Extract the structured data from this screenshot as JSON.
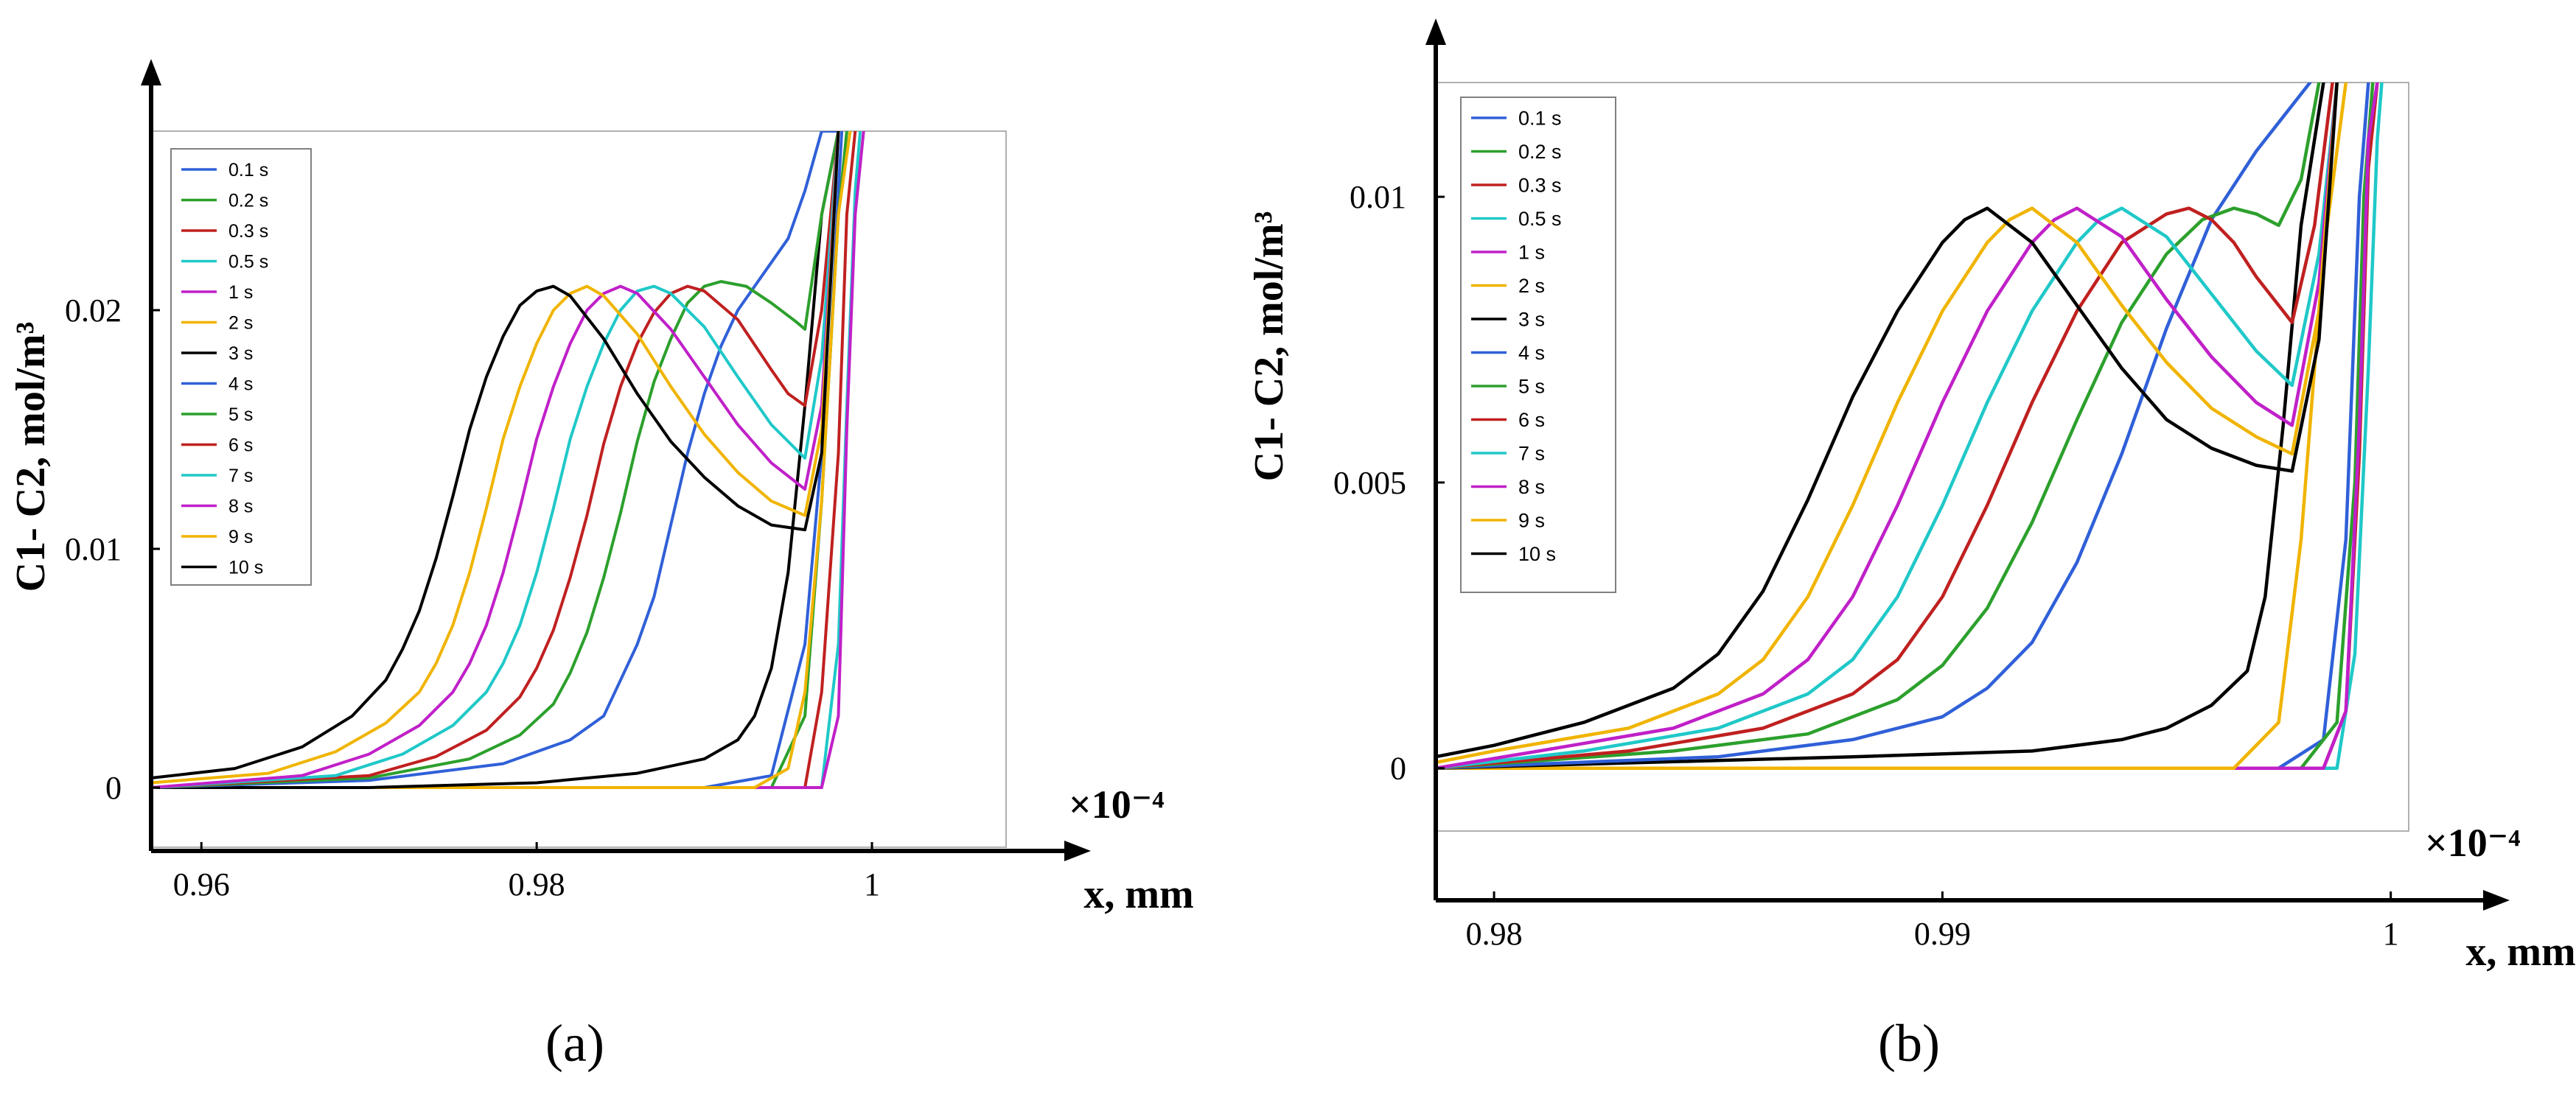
{
  "figure": {
    "panel_labels": [
      "(a)",
      "(b)"
    ]
  },
  "legend_colors": {
    "0.1 s": "#3060d8",
    "0.2 s": "#2ca02c",
    "0.3 s": "#c02020",
    "0.5 s": "#20c8c8",
    "1 s": "#c020c8",
    "2 s": "#f0b400",
    "3 s": "#000000",
    "4 s": "#3060d8",
    "5 s": "#2ca02c",
    "6 s": "#c02020",
    "7 s": "#20c8c8",
    "8 s": "#c020c8",
    "9 s": "#f0b400",
    "10 s": "#000000"
  },
  "chart_data": [
    {
      "panel": "(a)",
      "type": "line",
      "xlabel": "x, mm",
      "ylabel": "C1- C2, mol/m³",
      "xscale_label": "×10⁻⁴",
      "xlim": [
        0.957,
        1.008
      ],
      "ylim": [
        -0.0025,
        0.0275
      ],
      "xticks": [
        0.96,
        0.98,
        1
      ],
      "xtick_labels": [
        "0.96",
        "0.98",
        "1"
      ],
      "yticks": [
        0,
        0.01,
        0.02
      ],
      "ytick_labels": [
        "0",
        "0.01",
        "0.02"
      ],
      "legend": [
        "0.1 s",
        "0.2 s",
        "0.3 s",
        "0.5 s",
        "1 s",
        "2 s",
        "3 s",
        "4 s",
        "5 s",
        "6 s",
        "7 s",
        "8 s",
        "9 s",
        "10 s"
      ],
      "series": [
        {
          "name": "0.1 s",
          "x": [
            0.957,
            0.99,
            0.994,
            0.996,
            0.9975,
            0.998,
            0.9982
          ],
          "y": [
            0,
            0,
            0.0005,
            0.006,
            0.018,
            0.025,
            0.0275
          ]
        },
        {
          "name": "0.2 s",
          "x": [
            0.957,
            0.994,
            0.996,
            0.997,
            0.998,
            0.9985
          ],
          "y": [
            0,
            0,
            0.003,
            0.012,
            0.024,
            0.0275
          ]
        },
        {
          "name": "0.3 s",
          "x": [
            0.957,
            0.996,
            0.997,
            0.998,
            0.9985,
            0.999
          ],
          "y": [
            0,
            0,
            0.004,
            0.014,
            0.024,
            0.0275
          ]
        },
        {
          "name": "0.5 s",
          "x": [
            0.957,
            0.997,
            0.998,
            0.9985,
            0.999,
            0.9993
          ],
          "y": [
            0,
            0,
            0.006,
            0.016,
            0.025,
            0.0275
          ]
        },
        {
          "name": "1 s",
          "x": [
            0.957,
            0.997,
            0.998,
            0.9985,
            0.999,
            0.9995
          ],
          "y": [
            0,
            0,
            0.003,
            0.015,
            0.024,
            0.0275
          ]
        },
        {
          "name": "2 s",
          "x": [
            0.957,
            0.993,
            0.995,
            0.996,
            0.997,
            0.998,
            0.9987
          ],
          "y": [
            0,
            0,
            0.0008,
            0.004,
            0.012,
            0.024,
            0.0275
          ]
        },
        {
          "name": "3 s",
          "x": [
            0.957,
            0.97,
            0.98,
            0.986,
            0.99,
            0.992,
            0.993,
            0.994,
            0.995,
            0.996,
            0.997,
            0.998
          ],
          "y": [
            0,
            0,
            0.0002,
            0.0006,
            0.0012,
            0.002,
            0.003,
            0.005,
            0.009,
            0.016,
            0.024,
            0.0275
          ]
        },
        {
          "name": "4 s",
          "x": [
            0.957,
            0.97,
            0.978,
            0.982,
            0.984,
            0.985,
            0.986,
            0.987,
            0.988,
            0.989,
            0.99,
            0.991,
            0.992,
            0.993,
            0.994,
            0.995,
            0.996,
            0.997,
            0.998
          ],
          "y": [
            0,
            0.0003,
            0.001,
            0.002,
            0.003,
            0.0045,
            0.006,
            0.008,
            0.011,
            0.014,
            0.0165,
            0.0185,
            0.02,
            0.021,
            0.022,
            0.023,
            0.025,
            0.0275,
            0.0275
          ]
        },
        {
          "name": "5 s",
          "x": [
            0.957,
            0.97,
            0.976,
            0.979,
            0.981,
            0.982,
            0.983,
            0.984,
            0.985,
            0.986,
            0.987,
            0.988,
            0.989,
            0.99,
            0.991,
            0.9925,
            0.994,
            0.9955,
            0.996,
            0.997,
            0.998
          ],
          "y": [
            0,
            0.0004,
            0.0012,
            0.0022,
            0.0035,
            0.0048,
            0.0065,
            0.0088,
            0.0115,
            0.0145,
            0.017,
            0.0188,
            0.0203,
            0.021,
            0.0212,
            0.021,
            0.0203,
            0.0195,
            0.0192,
            0.024,
            0.0275
          ]
        },
        {
          "name": "6 s",
          "x": [
            0.957,
            0.97,
            0.974,
            0.977,
            0.979,
            0.98,
            0.981,
            0.982,
            0.983,
            0.984,
            0.985,
            0.986,
            0.987,
            0.988,
            0.989,
            0.99,
            0.992,
            0.994,
            0.995,
            0.996,
            0.997,
            0.998
          ],
          "y": [
            0,
            0.0005,
            0.0013,
            0.0024,
            0.0038,
            0.005,
            0.0066,
            0.0088,
            0.0114,
            0.0144,
            0.0168,
            0.0186,
            0.0199,
            0.0207,
            0.021,
            0.0208,
            0.0196,
            0.0175,
            0.0165,
            0.016,
            0.02,
            0.0275
          ]
        },
        {
          "name": "7 s",
          "x": [
            0.957,
            0.968,
            0.972,
            0.975,
            0.977,
            0.978,
            0.979,
            0.98,
            0.981,
            0.982,
            0.983,
            0.984,
            0.985,
            0.986,
            0.987,
            0.988,
            0.99,
            0.992,
            0.994,
            0.996,
            0.997,
            0.998
          ],
          "y": [
            0,
            0.0005,
            0.0014,
            0.0026,
            0.004,
            0.0052,
            0.0068,
            0.009,
            0.0117,
            0.0146,
            0.0168,
            0.0186,
            0.02,
            0.0208,
            0.021,
            0.0207,
            0.0193,
            0.0172,
            0.0152,
            0.0138,
            0.018,
            0.0275
          ]
        },
        {
          "name": "8 s",
          "x": [
            0.957,
            0.966,
            0.97,
            0.973,
            0.975,
            0.976,
            0.977,
            0.978,
            0.979,
            0.98,
            0.981,
            0.982,
            0.983,
            0.984,
            0.985,
            0.986,
            0.988,
            0.99,
            0.992,
            0.994,
            0.996,
            0.997,
            0.998
          ],
          "y": [
            0,
            0.0005,
            0.0014,
            0.0026,
            0.004,
            0.0052,
            0.0068,
            0.009,
            0.0117,
            0.0146,
            0.0168,
            0.0186,
            0.02,
            0.0207,
            0.021,
            0.0207,
            0.0192,
            0.0172,
            0.0152,
            0.0136,
            0.0125,
            0.016,
            0.0275
          ]
        },
        {
          "name": "9 s",
          "x": [
            0.957,
            0.964,
            0.968,
            0.971,
            0.973,
            0.974,
            0.975,
            0.976,
            0.977,
            0.978,
            0.979,
            0.98,
            0.981,
            0.982,
            0.983,
            0.984,
            0.986,
            0.988,
            0.99,
            0.992,
            0.994,
            0.996,
            0.997,
            0.998
          ],
          "y": [
            0.0002,
            0.0006,
            0.0015,
            0.0027,
            0.004,
            0.0052,
            0.0068,
            0.009,
            0.0117,
            0.0146,
            0.0168,
            0.0186,
            0.02,
            0.0207,
            0.021,
            0.0206,
            0.019,
            0.0168,
            0.0148,
            0.0132,
            0.012,
            0.0114,
            0.015,
            0.0275
          ]
        },
        {
          "name": "10 s",
          "x": [
            0.957,
            0.962,
            0.966,
            0.969,
            0.971,
            0.972,
            0.973,
            0.974,
            0.975,
            0.976,
            0.977,
            0.978,
            0.979,
            0.98,
            0.981,
            0.982,
            0.984,
            0.986,
            0.988,
            0.99,
            0.992,
            0.994,
            0.996,
            0.997,
            0.998
          ],
          "y": [
            0.0004,
            0.0008,
            0.0017,
            0.003,
            0.0045,
            0.0058,
            0.0074,
            0.0096,
            0.0122,
            0.015,
            0.0172,
            0.0189,
            0.0202,
            0.0208,
            0.021,
            0.0206,
            0.0188,
            0.0165,
            0.0145,
            0.013,
            0.0118,
            0.011,
            0.0108,
            0.014,
            0.0275
          ]
        }
      ]
    },
    {
      "panel": "(b)",
      "type": "line",
      "xlabel": "x, mm",
      "ylabel": "C1- C2, mol/m³",
      "xscale_label": "×10⁻⁴",
      "xlim": [
        0.9787,
        1.0004
      ],
      "ylim": [
        -0.0011,
        0.012
      ],
      "xticks": [
        0.98,
        0.99,
        1
      ],
      "xtick_labels": [
        "0.98",
        "0.99",
        "1"
      ],
      "yticks": [
        0,
        0.005,
        0.01
      ],
      "ytick_labels": [
        "0",
        "0.005",
        "0.01"
      ],
      "legend": [
        "0.1 s",
        "0.2 s",
        "0.3 s",
        "0.5 s",
        "1 s",
        "2 s",
        "3 s",
        "4 s",
        "5 s",
        "6 s",
        "7 s",
        "8 s",
        "9 s",
        "10 s"
      ],
      "series": [
        {
          "name": "0.1 s",
          "x": [
            0.9787,
            0.9975,
            0.9985,
            0.999,
            0.9993,
            0.9995
          ],
          "y": [
            0,
            0,
            0.0005,
            0.004,
            0.01,
            0.012
          ]
        },
        {
          "name": "0.2 s",
          "x": [
            0.9787,
            0.998,
            0.9988,
            0.9992,
            0.9994,
            0.9996
          ],
          "y": [
            0,
            0,
            0.0008,
            0.005,
            0.01,
            0.012
          ]
        },
        {
          "name": "0.3 s",
          "x": [
            0.9787,
            0.9985,
            0.999,
            0.9993,
            0.9995,
            0.9997
          ],
          "y": [
            0,
            0,
            0.001,
            0.0055,
            0.0105,
            0.012
          ]
        },
        {
          "name": "0.5 s",
          "x": [
            0.9787,
            0.9988,
            0.9992,
            0.9995,
            0.9997,
            0.9998
          ],
          "y": [
            0,
            0,
            0.002,
            0.007,
            0.011,
            0.012
          ]
        },
        {
          "name": "1 s",
          "x": [
            0.9787,
            0.9985,
            0.999,
            0.9993,
            0.9995,
            0.9997
          ],
          "y": [
            0,
            0,
            0.001,
            0.006,
            0.011,
            0.012
          ]
        },
        {
          "name": "2 s",
          "x": [
            0.9787,
            0.9965,
            0.9975,
            0.998,
            0.9985,
            0.999
          ],
          "y": [
            0,
            0,
            0.0008,
            0.004,
            0.009,
            0.012
          ]
        },
        {
          "name": "3 s",
          "x": [
            0.9787,
            0.988,
            0.992,
            0.994,
            0.995,
            0.996,
            0.9968,
            0.9972,
            0.9976,
            0.998,
            0.9985
          ],
          "y": [
            0,
            0.0002,
            0.0003,
            0.0005,
            0.0007,
            0.0011,
            0.0017,
            0.003,
            0.006,
            0.0095,
            0.012
          ]
        },
        {
          "name": "4 s",
          "x": [
            0.9787,
            0.985,
            0.988,
            0.99,
            0.991,
            0.992,
            0.993,
            0.994,
            0.995,
            0.996,
            0.997,
            0.9975,
            0.9982
          ],
          "y": [
            0,
            0.0002,
            0.0005,
            0.0009,
            0.0014,
            0.0022,
            0.0036,
            0.0055,
            0.0077,
            0.0096,
            0.0108,
            0.0113,
            0.012
          ]
        },
        {
          "name": "5 s",
          "x": [
            0.9787,
            0.984,
            0.987,
            0.989,
            0.99,
            0.991,
            0.992,
            0.993,
            0.994,
            0.995,
            0.9958,
            0.9965,
            0.997,
            0.9975,
            0.998,
            0.9984
          ],
          "y": [
            0,
            0.0003,
            0.0006,
            0.0012,
            0.0018,
            0.0028,
            0.0043,
            0.0061,
            0.0078,
            0.009,
            0.0096,
            0.0098,
            0.0097,
            0.0095,
            0.0103,
            0.012
          ]
        },
        {
          "name": "6 s",
          "x": [
            0.9787,
            0.983,
            0.986,
            0.988,
            0.989,
            0.99,
            0.991,
            0.992,
            0.993,
            0.994,
            0.995,
            0.9955,
            0.996,
            0.9965,
            0.997,
            0.9978,
            0.9983,
            0.9987
          ],
          "y": [
            0,
            0.0003,
            0.0007,
            0.0013,
            0.0019,
            0.003,
            0.0046,
            0.0064,
            0.008,
            0.0092,
            0.0097,
            0.0098,
            0.0096,
            0.0092,
            0.0086,
            0.0078,
            0.0095,
            0.012
          ]
        },
        {
          "name": "7 s",
          "x": [
            0.9787,
            0.982,
            0.985,
            0.987,
            0.988,
            0.989,
            0.99,
            0.991,
            0.992,
            0.993,
            0.9935,
            0.994,
            0.995,
            0.996,
            0.997,
            0.9978,
            0.9984,
            0.9988
          ],
          "y": [
            0,
            0.0003,
            0.0007,
            0.0013,
            0.0019,
            0.003,
            0.0046,
            0.0064,
            0.008,
            0.0092,
            0.0096,
            0.0098,
            0.0093,
            0.0083,
            0.0073,
            0.0067,
            0.009,
            0.012
          ]
        },
        {
          "name": "8 s",
          "x": [
            0.9787,
            0.981,
            0.984,
            0.986,
            0.987,
            0.988,
            0.989,
            0.99,
            0.991,
            0.992,
            0.9925,
            0.993,
            0.994,
            0.995,
            0.996,
            0.997,
            0.9978,
            0.9984,
            0.9988
          ],
          "y": [
            0,
            0.0003,
            0.0007,
            0.0013,
            0.0019,
            0.003,
            0.0046,
            0.0064,
            0.008,
            0.0092,
            0.0096,
            0.0098,
            0.0093,
            0.0082,
            0.0072,
            0.0064,
            0.006,
            0.0085,
            0.012
          ]
        },
        {
          "name": "9 s",
          "x": [
            0.9787,
            0.98,
            0.983,
            0.985,
            0.986,
            0.987,
            0.988,
            0.989,
            0.99,
            0.991,
            0.9915,
            0.992,
            0.993,
            0.994,
            0.995,
            0.996,
            0.997,
            0.9978,
            0.9984,
            0.9988
          ],
          "y": [
            0.0001,
            0.0003,
            0.0007,
            0.0013,
            0.0019,
            0.003,
            0.0046,
            0.0064,
            0.008,
            0.0092,
            0.0096,
            0.0098,
            0.0092,
            0.0081,
            0.0071,
            0.0063,
            0.0058,
            0.0055,
            0.008,
            0.012
          ]
        },
        {
          "name": "10 s",
          "x": [
            0.9787,
            0.98,
            0.982,
            0.984,
            0.985,
            0.986,
            0.987,
            0.988,
            0.989,
            0.99,
            0.9905,
            0.991,
            0.992,
            0.993,
            0.994,
            0.995,
            0.996,
            0.997,
            0.9978,
            0.9984,
            0.9988
          ],
          "y": [
            0.0002,
            0.0004,
            0.0008,
            0.0014,
            0.002,
            0.0031,
            0.0047,
            0.0065,
            0.008,
            0.0092,
            0.0096,
            0.0098,
            0.0092,
            0.0081,
            0.007,
            0.0061,
            0.0056,
            0.0053,
            0.0052,
            0.0075,
            0.012
          ]
        }
      ]
    }
  ]
}
